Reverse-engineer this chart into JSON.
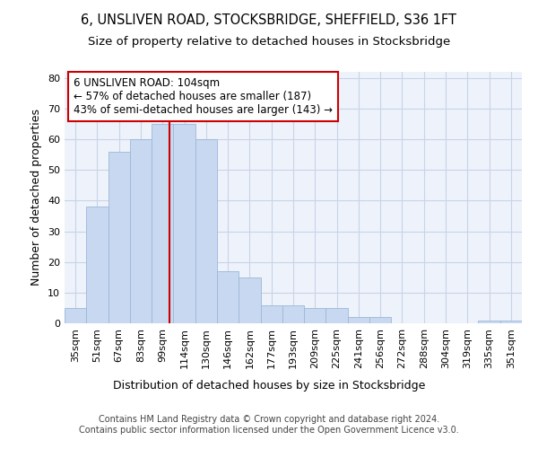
{
  "title_line1": "6, UNSLIVEN ROAD, STOCKSBRIDGE, SHEFFIELD, S36 1FT",
  "title_line2": "Size of property relative to detached houses in Stocksbridge",
  "xlabel": "Distribution of detached houses by size in Stocksbridge",
  "ylabel": "Number of detached properties",
  "categories": [
    "35sqm",
    "51sqm",
    "67sqm",
    "83sqm",
    "99sqm",
    "114sqm",
    "130sqm",
    "146sqm",
    "162sqm",
    "177sqm",
    "193sqm",
    "209sqm",
    "225sqm",
    "241sqm",
    "256sqm",
    "272sqm",
    "288sqm",
    "304sqm",
    "319sqm",
    "335sqm",
    "351sqm"
  ],
  "values": [
    5,
    38,
    56,
    60,
    65,
    65,
    60,
    17,
    15,
    6,
    6,
    5,
    5,
    2,
    2,
    0,
    0,
    0,
    0,
    1,
    1
  ],
  "bar_color": "#c8d8f0",
  "bar_edge_color": "#9ab8d8",
  "vline_color": "#cc0000",
  "annotation_text": "6 UNSLIVEN ROAD: 104sqm\n← 57% of detached houses are smaller (187)\n43% of semi-detached houses are larger (143) →",
  "annotation_box_color": "#ffffff",
  "annotation_box_edge": "#cc0000",
  "ylim": [
    0,
    82
  ],
  "yticks": [
    0,
    10,
    20,
    30,
    40,
    50,
    60,
    70,
    80
  ],
  "grid_color": "#c8d4e8",
  "background_color": "#eef2fb",
  "footer_text": "Contains HM Land Registry data © Crown copyright and database right 2024.\nContains public sector information licensed under the Open Government Licence v3.0.",
  "title_fontsize": 10.5,
  "subtitle_fontsize": 9.5,
  "axis_label_fontsize": 9,
  "tick_fontsize": 8,
  "annotation_fontsize": 8.5,
  "footer_fontsize": 7
}
